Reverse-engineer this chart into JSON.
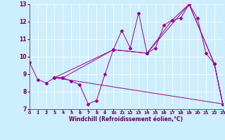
{
  "xlabel": "Windchill (Refroidissement éolien,°C)",
  "xlim": [
    0,
    23
  ],
  "ylim": [
    7,
    13
  ],
  "xticks": [
    0,
    1,
    2,
    3,
    4,
    5,
    6,
    7,
    8,
    9,
    10,
    11,
    12,
    13,
    14,
    15,
    16,
    17,
    18,
    19,
    20,
    21,
    22,
    23
  ],
  "yticks": [
    7,
    8,
    9,
    10,
    11,
    12,
    13
  ],
  "bg_color": "#cceeff",
  "line_color": "#990099",
  "lines": [
    {
      "x": [
        0,
        1,
        2,
        3,
        4,
        5,
        6,
        7,
        8,
        9,
        10,
        11,
        12,
        13,
        14,
        15,
        16,
        17,
        18,
        19,
        20,
        21,
        22,
        23
      ],
      "y": [
        9.7,
        8.7,
        8.5,
        8.8,
        8.8,
        8.6,
        8.4,
        7.3,
        7.5,
        9.0,
        10.4,
        11.5,
        10.5,
        12.5,
        10.2,
        10.5,
        11.8,
        12.1,
        12.2,
        13.0,
        12.2,
        10.2,
        9.6,
        7.3
      ]
    },
    {
      "x": [
        3,
        4,
        10,
        14,
        17,
        19,
        22,
        23
      ],
      "y": [
        8.8,
        8.8,
        10.4,
        10.2,
        12.1,
        13.0,
        9.6,
        7.3
      ]
    },
    {
      "x": [
        3,
        10,
        14,
        19,
        22,
        23
      ],
      "y": [
        8.8,
        10.4,
        10.2,
        13.0,
        9.6,
        7.3
      ]
    },
    {
      "x": [
        3,
        23
      ],
      "y": [
        8.8,
        7.3
      ]
    }
  ]
}
